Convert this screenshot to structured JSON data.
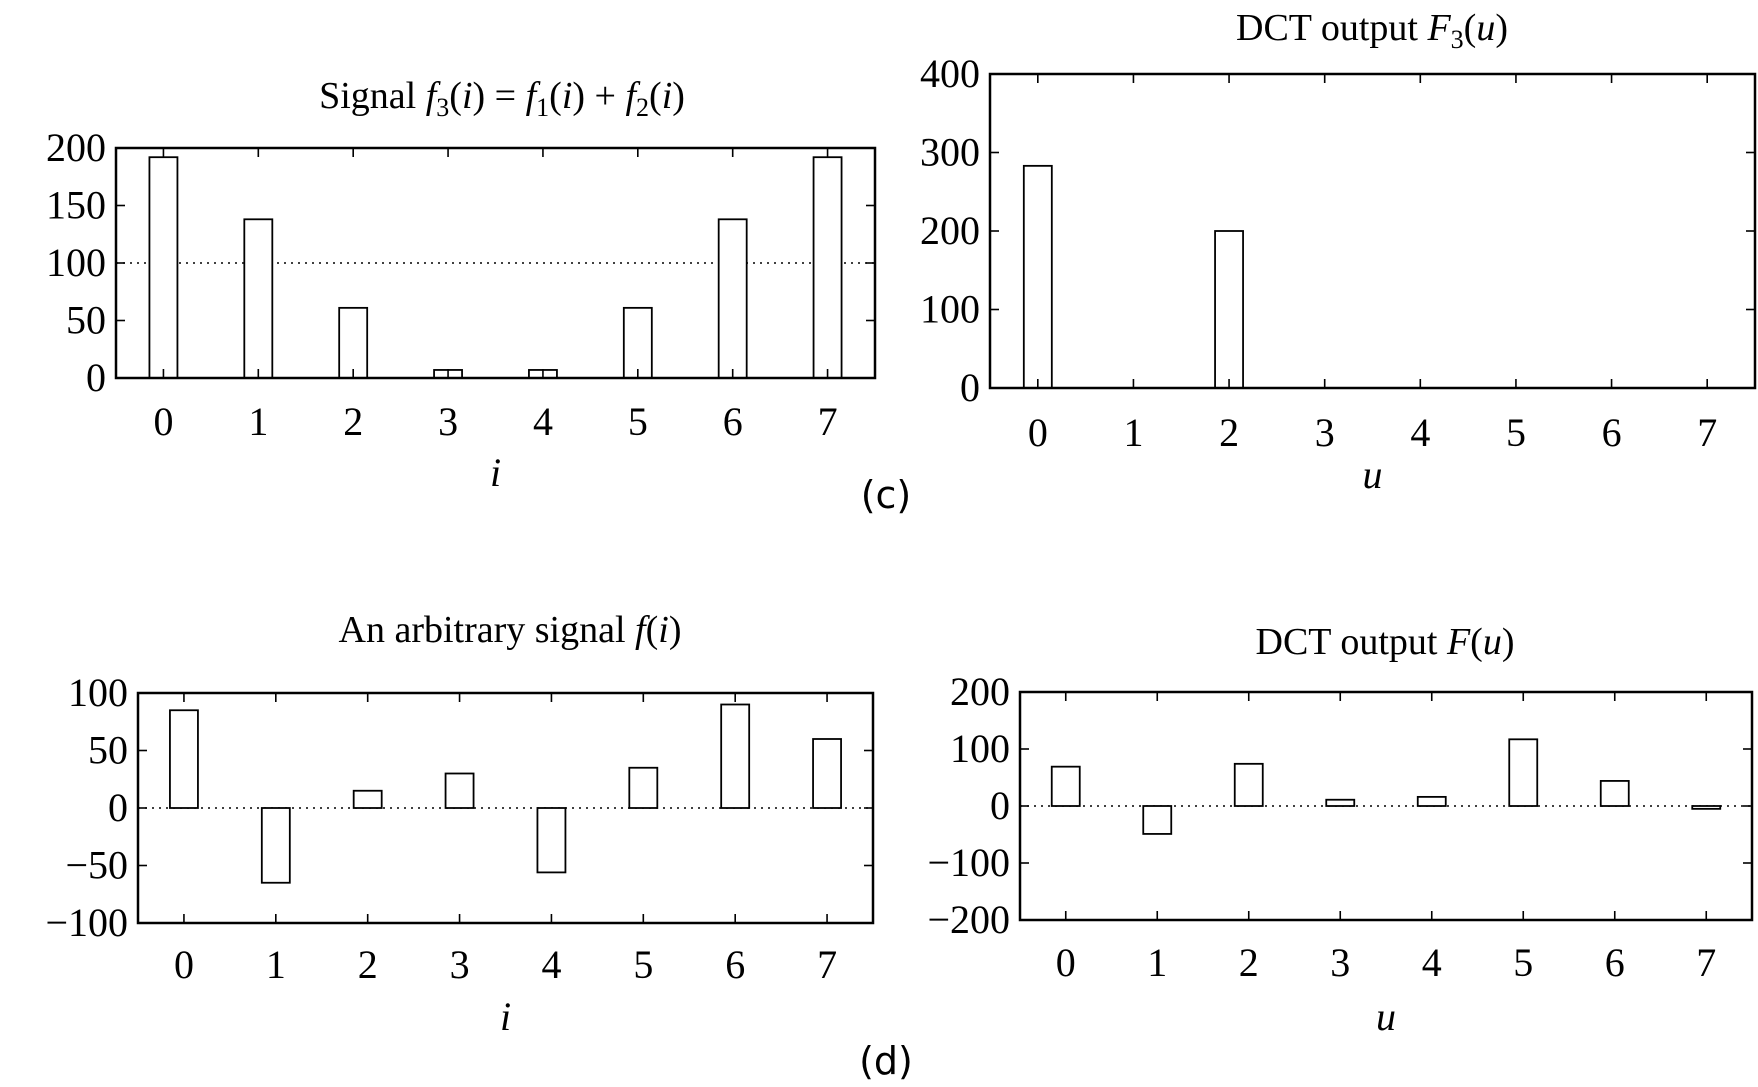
{
  "chart_data": [
    {
      "type": "bar",
      "title": "Signal f3(i) = f1(i) + f2(i)",
      "xlabel": "i",
      "ylabel": "",
      "categories": [
        "0",
        "1",
        "2",
        "3",
        "4",
        "5",
        "6",
        "7"
      ],
      "values": [
        192,
        138,
        61,
        7,
        7,
        61,
        138,
        192
      ],
      "ylim": [
        0,
        200
      ],
      "yticks": [
        "0",
        "50",
        "100",
        "150",
        "200"
      ],
      "reference_line": 100,
      "grid": false
    },
    {
      "type": "bar",
      "title": "DCT output F3(u)",
      "xlabel": "u",
      "ylabel": "",
      "categories": [
        "0",
        "1",
        "2",
        "3",
        "4",
        "5",
        "6",
        "7"
      ],
      "values": [
        283,
        0,
        200,
        0,
        0,
        0,
        0,
        0
      ],
      "ylim": [
        0,
        400
      ],
      "yticks": [
        "0",
        "100",
        "200",
        "300",
        "400"
      ],
      "grid": false
    },
    {
      "type": "bar",
      "title": "An arbitrary signal f(i)",
      "xlabel": "i",
      "ylabel": "",
      "categories": [
        "0",
        "1",
        "2",
        "3",
        "4",
        "5",
        "6",
        "7"
      ],
      "values": [
        85,
        -65,
        15,
        30,
        -56,
        35,
        90,
        60
      ],
      "ylim": [
        -100,
        100
      ],
      "yticks": [
        "−100",
        "−50",
        "0",
        "50",
        "100"
      ],
      "reference_line": 0,
      "grid": false
    },
    {
      "type": "bar",
      "title": "DCT output F(u)",
      "xlabel": "u",
      "ylabel": "",
      "categories": [
        "0",
        "1",
        "2",
        "3",
        "4",
        "5",
        "6",
        "7"
      ],
      "values": [
        69,
        -49,
        74,
        11,
        16,
        117,
        44,
        -5
      ],
      "ylim": [
        -200,
        200
      ],
      "yticks": [
        "−200",
        "−100",
        "0",
        "100",
        "200"
      ],
      "reference_line": 0,
      "grid": false
    }
  ],
  "panel_labels": {
    "c": "(c)",
    "d": "(d)"
  }
}
